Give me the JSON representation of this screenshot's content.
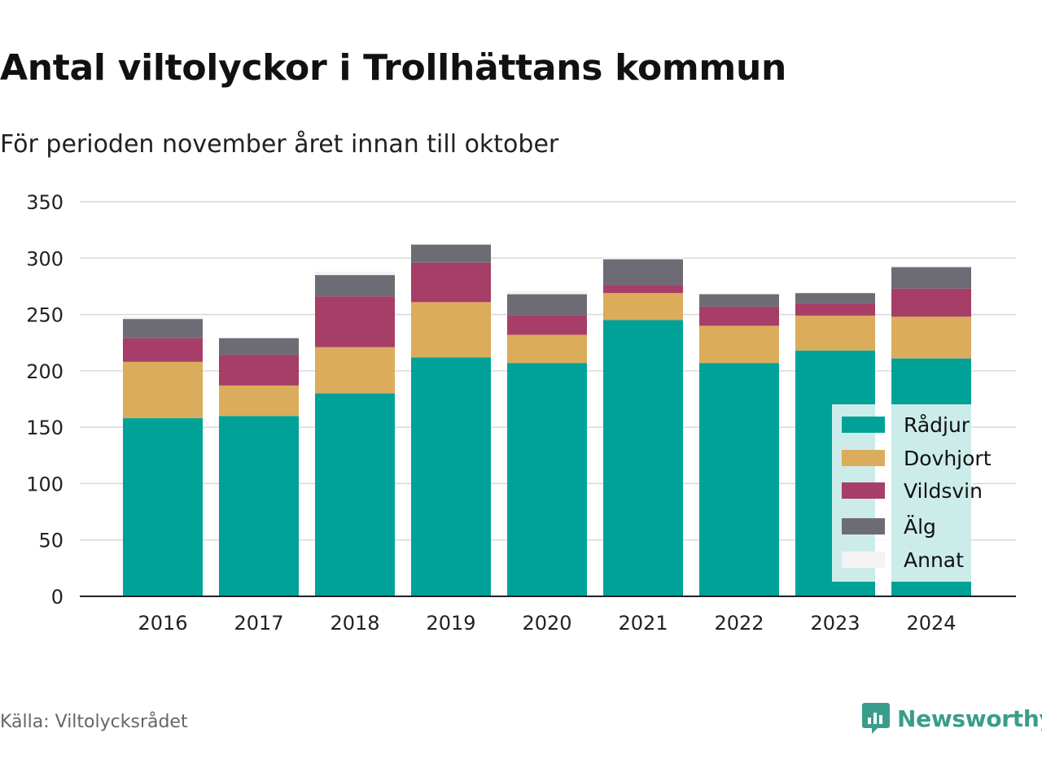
{
  "title": "Antal viltolyckor i Trollhättans kommun",
  "subtitle": "För perioden november året innan till oktober",
  "source": "Källa: Viltolycksrådet",
  "brand": "Newsworthy",
  "colors": {
    "Rådjur": "#00a298",
    "Dovhjort": "#dbac5c",
    "Vildsvin": "#a63e68",
    "Älg": "#6d6c75",
    "Annat": "#f3f3f4",
    "grid": "#d9d9d9",
    "brand": "#3a9d8c"
  },
  "chart_data": {
    "type": "bar",
    "stacked": true,
    "categories": [
      "2016",
      "2017",
      "2018",
      "2019",
      "2020",
      "2021",
      "2022",
      "2023",
      "2024"
    ],
    "series": [
      {
        "name": "Rådjur",
        "values": [
          158,
          160,
          180,
          212,
          207,
          245,
          207,
          218,
          211
        ]
      },
      {
        "name": "Dovhjort",
        "values": [
          50,
          27,
          41,
          49,
          25,
          24,
          33,
          31,
          37
        ]
      },
      {
        "name": "Vildsvin",
        "values": [
          21,
          27,
          45,
          35,
          17,
          7,
          17,
          11,
          25
        ]
      },
      {
        "name": "Älg",
        "values": [
          17,
          15,
          19,
          16,
          19,
          23,
          11,
          9,
          19
        ]
      },
      {
        "name": "Annat",
        "values": [
          2,
          0,
          3,
          0,
          3,
          2,
          0,
          0,
          1
        ]
      }
    ],
    "yticks": [
      0,
      50,
      100,
      150,
      200,
      250,
      300,
      350
    ],
    "ylim": [
      0,
      350
    ],
    "grid": true,
    "legend_position": "bottom-right"
  }
}
